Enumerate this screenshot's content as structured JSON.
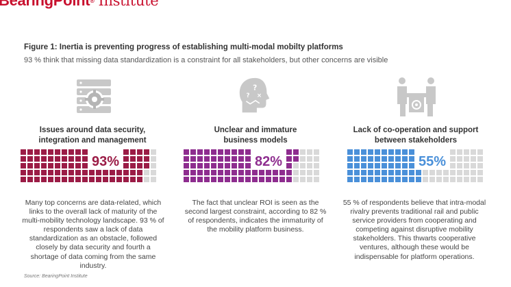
{
  "brand": {
    "name": "BearingPoint",
    "reg": "®",
    "suffix": "Institute"
  },
  "figure": {
    "title": "Figure 1: Inertia is preventing progress of establishing multi-modal mobilty platforms",
    "subtitle": "93 % think that missing data standardization is a constraint for all stakeholders, but other concerns are visible"
  },
  "chart_data": {
    "type": "waffle",
    "title": "Figure 1: Inertia is preventing progress of establishing multi-modal mobilty platforms",
    "unit": "%",
    "series": [
      {
        "name": "Issues around data security, integration and management",
        "label": "93%",
        "value": 93,
        "color": "#9b1c46"
      },
      {
        "name": "Unclear and immature business models",
        "label": "82%",
        "value": 82,
        "color": "#8e2d8f"
      },
      {
        "name": "Lack of co-operation and support between stakeholders",
        "label": "55%",
        "value": 55,
        "color": "#4a90d9"
      }
    ]
  },
  "columns": [
    {
      "title_line1": "Issues around data security,",
      "title_line2": "integration and management",
      "body": "Many top concerns are data-related, which links to the overall lack of maturity of the multi-mobility technology landscape. 93 % of respondents saw a lack of data standardization as an obstacle, followed closely by data security and fourth a shortage of data coming from the same industry.",
      "icon": "server-gear-icon"
    },
    {
      "title_line1": "Unclear and immature",
      "title_line2": "business models",
      "body": "The fact that unclear ROI is seen as the second largest constraint, according to 82 % of respondents, indicates the immaturity of the mobility platform business.",
      "icon": "head-question-icon"
    },
    {
      "title_line1": "Lack of co-operation and support",
      "title_line2": "between stakeholders",
      "body": "55 % of respondents believe that intra-modal rivalry prevents traditional rail and public service providers from cooperating and competing against disruptive mobility stakeholders. This thwarts cooperative ventures, although these would be indispensable for platform operations.",
      "icon": "people-gear-icon"
    }
  ],
  "colors": {
    "empty_cell": "#d9d9d9",
    "icon_gray": "#c8c8c8",
    "brand_red": "#c8102e"
  },
  "source": "Source: BearingPoint Institute"
}
